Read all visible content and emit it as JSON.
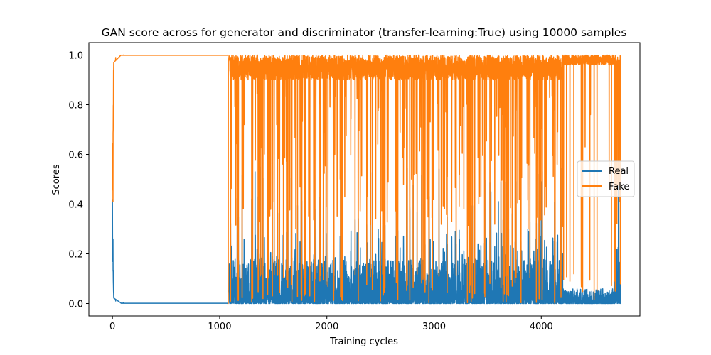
{
  "chart_data": {
    "type": "line",
    "title": "GAN score across for generator and discriminator (transfer-learning:True) using 10000 samples",
    "xlabel": "Training cycles",
    "ylabel": "Scores",
    "xlim": [
      -220,
      4920
    ],
    "ylim": [
      -0.05,
      1.05
    ],
    "xticks": [
      0,
      1000,
      2000,
      3000,
      4000
    ],
    "yticks": [
      0.0,
      0.2,
      0.4,
      0.6,
      0.8,
      1.0
    ],
    "ytick_labels": [
      "0.0",
      "0.2",
      "0.4",
      "0.6",
      "0.8",
      "1.0"
    ],
    "grid": false,
    "legend_position": "center-right",
    "n_points": 4740,
    "series": [
      {
        "name": "Real",
        "color": "#1f77b4",
        "description_points": [
          {
            "x": 0,
            "y": 0.42
          },
          {
            "x": 5,
            "y": 0.26
          },
          {
            "x": 10,
            "y": 0.05
          },
          {
            "x": 30,
            "y": 0.01
          },
          {
            "x": 100,
            "y": 0.004
          },
          {
            "x": 1075,
            "y": 0.0
          },
          {
            "x": 1080,
            "y": 0.04
          },
          {
            "x": 1330,
            "y": 0.53
          },
          {
            "x": 2500,
            "y": 0.35
          },
          {
            "x": 3530,
            "y": 0.45
          },
          {
            "x": 3600,
            "y": 0.41
          },
          {
            "x": 4000,
            "y": 0.49
          },
          {
            "x": 4430,
            "y": 0.02
          },
          {
            "x": 4720,
            "y": 0.59
          }
        ]
      },
      {
        "name": "Fake",
        "color": "#ff7f0e",
        "description_points": [
          {
            "x": 0,
            "y": 0.57
          },
          {
            "x": 5,
            "y": 0.41
          },
          {
            "x": 10,
            "y": 0.94
          },
          {
            "x": 30,
            "y": 0.99
          },
          {
            "x": 100,
            "y": 1.0
          },
          {
            "x": 1075,
            "y": 1.0
          },
          {
            "x": 1080,
            "y": 0.0
          },
          {
            "x": 1090,
            "y": 0.99
          },
          {
            "x": 2500,
            "y": 0.01
          },
          {
            "x": 4690,
            "y": 0.05
          },
          {
            "x": 4730,
            "y": 0.98
          }
        ]
      }
    ]
  }
}
